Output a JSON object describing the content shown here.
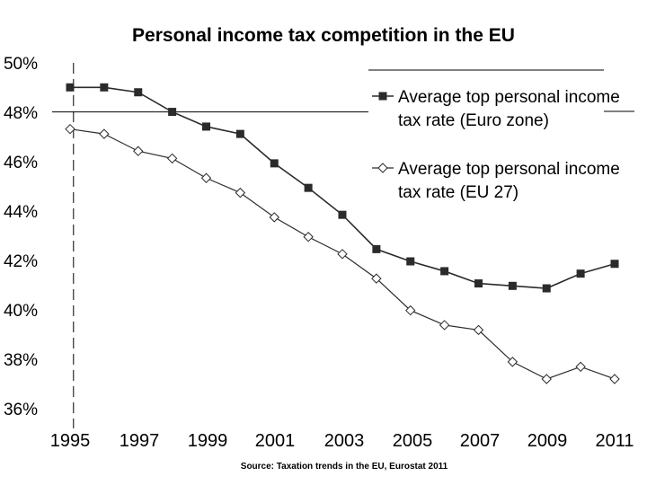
{
  "chart_data": {
    "type": "line",
    "title": "Personal income tax competition in the EU",
    "source": "Source: Taxation trends in the EU, Eurostat 2011",
    "x": [
      1995,
      1996,
      1997,
      1998,
      1999,
      2000,
      2001,
      2002,
      2003,
      2004,
      2005,
      2006,
      2007,
      2008,
      2009,
      2010,
      2011
    ],
    "x_tick_labels": [
      "1995",
      "1997",
      "1999",
      "2001",
      "2003",
      "2005",
      "2007",
      "2009",
      "2011"
    ],
    "y_tick_labels": [
      "50%",
      "48%",
      "46%",
      "44%",
      "42%",
      "40%",
      "38%",
      "36%"
    ],
    "ylim": [
      36,
      50
    ],
    "xlabel": "",
    "ylabel": "",
    "reference_line": {
      "x": 1995.1,
      "style": "dashed"
    },
    "series": [
      {
        "name_line1": "Average top personal income",
        "name_line2": "tax rate (Euro zone)",
        "marker": "filled-square",
        "color": "#2b2b2b",
        "values": [
          49.0,
          49.0,
          48.8,
          48.0,
          47.4,
          47.1,
          45.9,
          44.9,
          43.8,
          42.4,
          41.9,
          41.5,
          41.0,
          40.9,
          40.8,
          41.4,
          41.8
        ]
      },
      {
        "name_line1": "Average top personal income",
        "name_line2": "tax rate (EU 27)",
        "marker": "hollow-diamond",
        "color": "#2b2b2b",
        "values": [
          47.3,
          47.1,
          46.4,
          46.1,
          45.3,
          44.7,
          43.7,
          42.9,
          42.2,
          41.2,
          39.9,
          39.3,
          39.1,
          37.8,
          37.1,
          37.6,
          37.1
        ]
      }
    ]
  }
}
